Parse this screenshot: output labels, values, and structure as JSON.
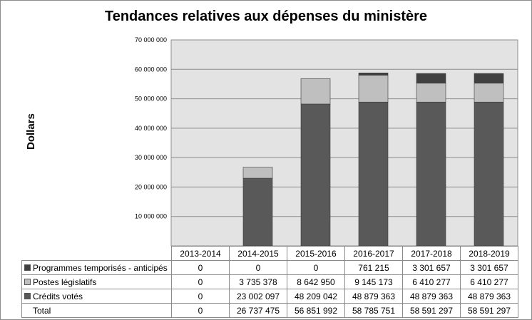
{
  "chart_data": {
    "type": "bar",
    "stacked": true,
    "title": "Tendances relatives aux dépenses du ministère",
    "xlabel": "",
    "ylabel": "Dollars",
    "ylim": [
      0,
      70000000
    ],
    "yticks": [
      10000000,
      20000000,
      30000000,
      40000000,
      50000000,
      60000000,
      70000000
    ],
    "ytick_labels": [
      "10 000 000",
      "20 000 000",
      "30 000 000",
      "40 000 000",
      "50 000 000",
      "60 000 000",
      "70 000 000"
    ],
    "categories": [
      "2013-2014",
      "2014-2015",
      "2015-2016",
      "2016-2017",
      "2017-2018",
      "2018-2019"
    ],
    "series": [
      {
        "name": "Crédits votés",
        "color": "#595959",
        "values": [
          0,
          23002097,
          48209042,
          48879363,
          48879363,
          48879363
        ],
        "labels": [
          "0",
          "23 002 097",
          "48 209 042",
          "48 879 363",
          "48 879 363",
          "48 879 363"
        ]
      },
      {
        "name": "Postes législatifs",
        "color": "#bfbfbf",
        "values": [
          0,
          3735378,
          8642950,
          9145173,
          6410277,
          6410277
        ],
        "labels": [
          "0",
          "3 735 378",
          "8 642 950",
          "9 145 173",
          "6 410 277",
          "6 410 277"
        ]
      },
      {
        "name": "Programmes temporisés - anticipés",
        "color": "#404040",
        "values": [
          0,
          0,
          0,
          761215,
          3301657,
          3301657
        ],
        "labels": [
          "0",
          "0",
          "0",
          "761 215",
          "3 301 657",
          "3 301 657"
        ]
      }
    ],
    "total": {
      "name": "Total",
      "values": [
        0,
        26737475,
        56851992,
        58785751,
        58591297,
        58591297
      ],
      "labels": [
        "0",
        "26 737 475",
        "56 851 992",
        "58 785 751",
        "58 591 297",
        "58 591 297"
      ]
    }
  }
}
